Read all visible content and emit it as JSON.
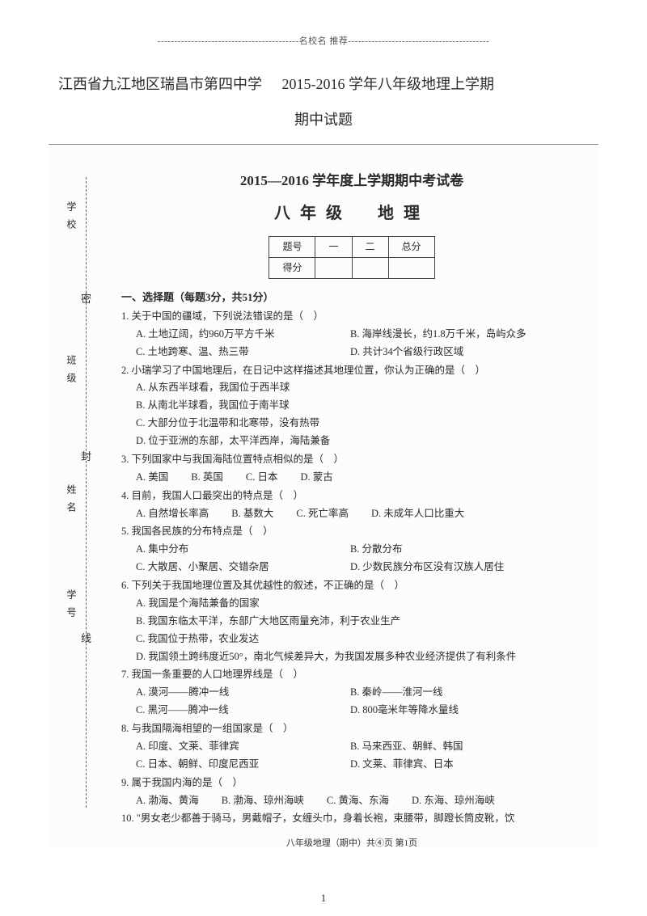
{
  "top_banner": "------------------------------------------名校名 推荐------------------------------------------",
  "doc_title": {
    "school": "江西省九江地区瑞昌市第四中学",
    "year_term": "2015-2016 学年八年级地理上学期",
    "subtitle": "期中试题"
  },
  "binding": {
    "labels": [
      "学校",
      "班级",
      "姓名",
      "学号"
    ],
    "seals": [
      "密",
      "封",
      "线"
    ]
  },
  "exam": {
    "header": "2015—2016 学年度上学期期中考试卷",
    "subject": "八年级　地理",
    "score_table": {
      "rows": [
        [
          "题号",
          "一",
          "二",
          "总分"
        ],
        [
          "得分",
          "",
          "",
          ""
        ]
      ]
    },
    "section1_title": "一、选择题（每题3分，共51分）",
    "questions": [
      {
        "n": "1.",
        "stem": "关于中国的疆域，下列说法错误的是（　）",
        "opts": [
          [
            "A. 土地辽阔，约960万平方千米",
            "B. 海岸线漫长，约1.8万千米，岛屿众多"
          ],
          [
            "C. 土地跨寒、温、热三带",
            "D. 共计34个省级行政区域"
          ]
        ]
      },
      {
        "n": "2.",
        "stem": "小瑞学习了中国地理后，在日记中这样描述其地理位置，你认为正确的是（　）",
        "opts": [
          [
            "A. 从东西半球看，我国位于西半球"
          ],
          [
            "B. 从南北半球看，我国位于南半球"
          ],
          [
            "C. 大部分位于北温带和北寒带，没有热带"
          ],
          [
            "D. 位于亚洲的东部，太平洋西岸，海陆兼备"
          ]
        ]
      },
      {
        "n": "3.",
        "stem": "下列国家中与我国海陆位置特点相似的是（　）",
        "opts": [
          [
            "A. 美国",
            "B. 英国",
            "C. 日本",
            "D. 蒙古"
          ]
        ],
        "inline": true
      },
      {
        "n": "4.",
        "stem": "目前，我国人口最突出的特点是（　）",
        "opts": [
          [
            "A. 自然增长率高",
            "B. 基数大",
            "C. 死亡率高",
            "D. 未成年人口比重大"
          ]
        ],
        "inline": true
      },
      {
        "n": "5.",
        "stem": "我国各民族的分布特点是（　）",
        "opts": [
          [
            "A. 集中分布",
            "B. 分散分布"
          ],
          [
            "C. 大散居、小聚居、交错杂居",
            "D. 少数民族分布区没有汉族人居住"
          ]
        ]
      },
      {
        "n": "6.",
        "stem": "下列关于我国地理位置及其优越性的叙述，不正确的是（　）",
        "opts": [
          [
            "A. 我国是个海陆兼备的国家"
          ],
          [
            "B. 我国东临太平洋，东部广大地区雨量充沛，利于农业生产"
          ],
          [
            "C. 我国位于热带，农业发达"
          ],
          [
            "D. 我国领土跨纬度近50°，南北气候差异大，为我国发展多种农业经济提供了有利条件"
          ]
        ]
      },
      {
        "n": "7.",
        "stem": "我国一条重要的人口地理界线是（　）",
        "opts": [
          [
            "A. 漠河——腾冲一线",
            "B. 秦岭——淮河一线"
          ],
          [
            "C. 黑河——腾冲一线",
            "D. 800毫米年等降水量线"
          ]
        ]
      },
      {
        "n": "8.",
        "stem": "与我国隔海相望的一组国家是（　）",
        "opts": [
          [
            "A. 印度、文莱、菲律宾",
            "B. 马来西亚、朝鲜、韩国"
          ],
          [
            "C. 日本、朝鲜、印度尼西亚",
            "D. 文莱、菲律宾、日本"
          ]
        ]
      },
      {
        "n": "9.",
        "stem": "属于我国内海的是（　）",
        "opts": [
          [
            "A. 渤海、黄海",
            "B. 渤海、琼州海峡",
            "C. 黄海、东海",
            "D. 东海、琼州海峡"
          ]
        ],
        "inline": true
      },
      {
        "n": "10.",
        "stem": "\"男女老少都善于骑马，男戴帽子，女缠头巾，身着长袍，束腰带，脚蹬长筒皮靴，饮"
      }
    ],
    "footer": "八年级地理（期中）共④页 第1页"
  },
  "page_num": "1"
}
